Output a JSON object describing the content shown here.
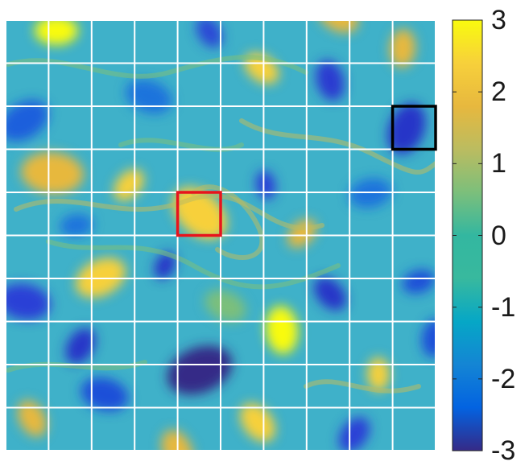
{
  "figure": {
    "grid": {
      "rows": 10,
      "cols": 10
    },
    "highlighted_cells": [
      {
        "name": "red-box",
        "color": "#e8141c",
        "row": 4,
        "col": 4
      },
      {
        "name": "black-box",
        "color": "#000000",
        "row": 2,
        "col": 9
      }
    ],
    "colormap": "parula",
    "colorbar": {
      "min": -3,
      "max": 3,
      "ticks": [
        {
          "label": "3",
          "value": 3
        },
        {
          "label": "2",
          "value": 2
        },
        {
          "label": "1",
          "value": 1
        },
        {
          "label": "0",
          "value": 0
        },
        {
          "label": "-1",
          "value": -1
        },
        {
          "label": "-2",
          "value": -2
        },
        {
          "label": "-3",
          "value": -3
        }
      ]
    }
  }
}
